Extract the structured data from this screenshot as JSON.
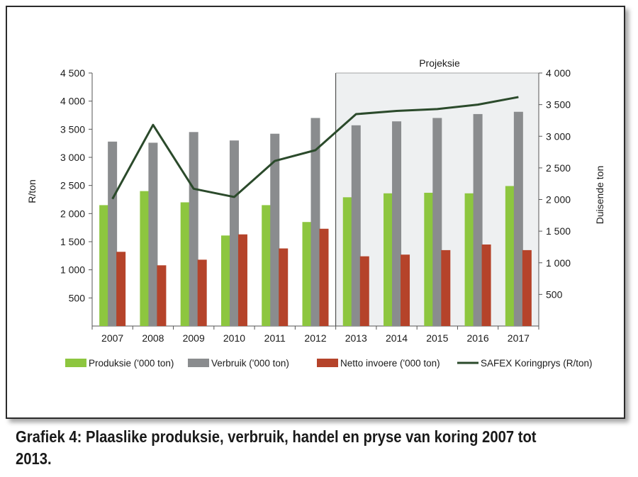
{
  "caption": "Grafiek 4: Plaaslike produksie, verbruik, handel en pryse van koring 2007 tot 2013.",
  "chart_data": {
    "type": "bar",
    "categories": [
      "2007",
      "2008",
      "2009",
      "2010",
      "2011",
      "2012",
      "2013",
      "2014",
      "2015",
      "2016",
      "2017"
    ],
    "series": [
      {
        "name": "Produksie ('000 ton)",
        "kind": "bar",
        "axis": "left",
        "color": "#8dc63f",
        "values": [
          2150,
          2400,
          2200,
          1610,
          2150,
          1850,
          2290,
          2360,
          2370,
          2360,
          2490
        ]
      },
      {
        "name": "Verbruik ('000 ton)",
        "kind": "bar",
        "axis": "left",
        "color": "#8a8c8e",
        "values": [
          3280,
          3260,
          3450,
          3300,
          3420,
          3700,
          3570,
          3640,
          3700,
          3770,
          3810
        ]
      },
      {
        "name": "Netto invoere ('000 ton)",
        "kind": "bar",
        "axis": "left",
        "color": "#b5432a",
        "values": [
          1320,
          1080,
          1180,
          1630,
          1380,
          1730,
          1240,
          1270,
          1350,
          1450,
          1350
        ]
      },
      {
        "name": "SAFEX Koringprys (R/ton)",
        "kind": "line",
        "axis": "right",
        "color": "#2b4a2b",
        "values": [
          2010,
          3180,
          2170,
          2040,
          2610,
          2780,
          3350,
          3400,
          3430,
          3500,
          3620
        ]
      }
    ],
    "left_axis": {
      "label": "R/ton",
      "min": 0,
      "max": 4500,
      "ticks": [
        500,
        1000,
        1500,
        2000,
        2500,
        3000,
        3500,
        4000,
        4500
      ],
      "tick_labels": [
        "500",
        "1 000",
        "1 500",
        "2 000",
        "2 500",
        "3 000",
        "3 500",
        "4 000",
        "4 500"
      ]
    },
    "right_axis": {
      "label": "Duisende ton",
      "min": 0,
      "max": 4000,
      "ticks": [
        500,
        1000,
        1500,
        2000,
        2500,
        3000,
        3500,
        4000
      ],
      "tick_labels": [
        "500",
        "1 000",
        "1 500",
        "2 000",
        "2 500",
        "3 000",
        "3 500",
        "4 000"
      ]
    },
    "projection": {
      "label": "Projeksie",
      "from_category": "2013",
      "to_category": "2017",
      "shade_color": "#eef0f1"
    },
    "grid": false,
    "legend_position": "bottom"
  }
}
